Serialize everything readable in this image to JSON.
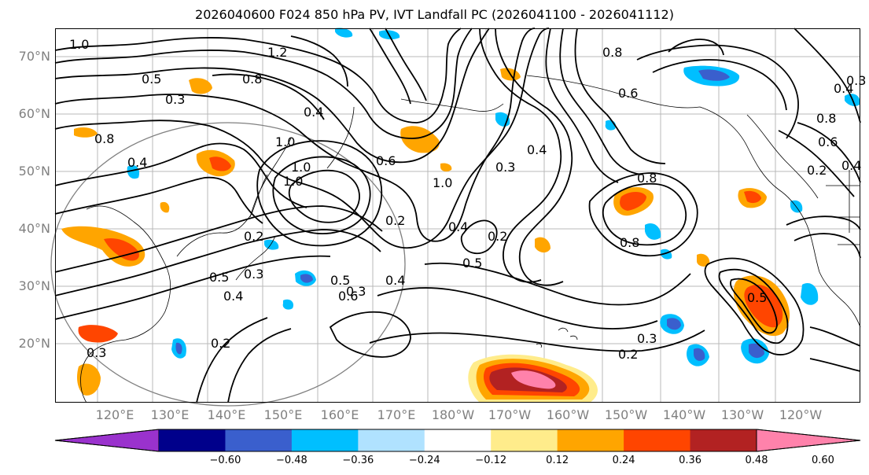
{
  "title": "2026040600 F024 850 hPa PV, IVT Landfall PC (2026041100 - 2026041112)",
  "lat_labels": [
    "70°N",
    "60°N",
    "50°N",
    "40°N",
    "30°N",
    "20°N"
  ],
  "lon_labels": [
    "120°E",
    "130°E",
    "140°E",
    "150°E",
    "160°E",
    "170°E",
    "180°W",
    "170°W",
    "160°W",
    "150°W",
    "140°W",
    "130°W",
    "120°W"
  ],
  "colorbar": {
    "colors": [
      "#9a32cd",
      "#00008b",
      "#3a5fcd",
      "#00bfff",
      "#b0e2ff",
      "#ffffff",
      "#ffec8b",
      "#ffa500",
      "#ff4500",
      "#b22222",
      "#ff82ab"
    ],
    "tick_labels": [
      "−0.60",
      "−0.48",
      "−0.36",
      "−0.24",
      "−0.12",
      "0.12",
      "0.24",
      "0.36",
      "0.48",
      "0.60"
    ]
  },
  "contour_labels": [
    "1.0",
    "0.5",
    "0.3",
    "0.4",
    "1.2",
    "0.8",
    "1.0",
    "0.8",
    "0.4",
    "0.2",
    "0.8",
    "0.6",
    "1.0",
    "0.3",
    "0.4",
    "0.2",
    "0.8",
    "0.6",
    "0.8",
    "0.4",
    "1.0",
    "1.0",
    "0.5",
    "0.4",
    "0.2",
    "0.3",
    "0.5",
    "0.3",
    "0.6",
    "0.4",
    "0.5",
    "0.3",
    "0.2",
    "0.3",
    "0.2",
    "0.5",
    "0.4",
    "0.3",
    "0.2",
    "0.8",
    "0.6",
    "0.4"
  ]
}
